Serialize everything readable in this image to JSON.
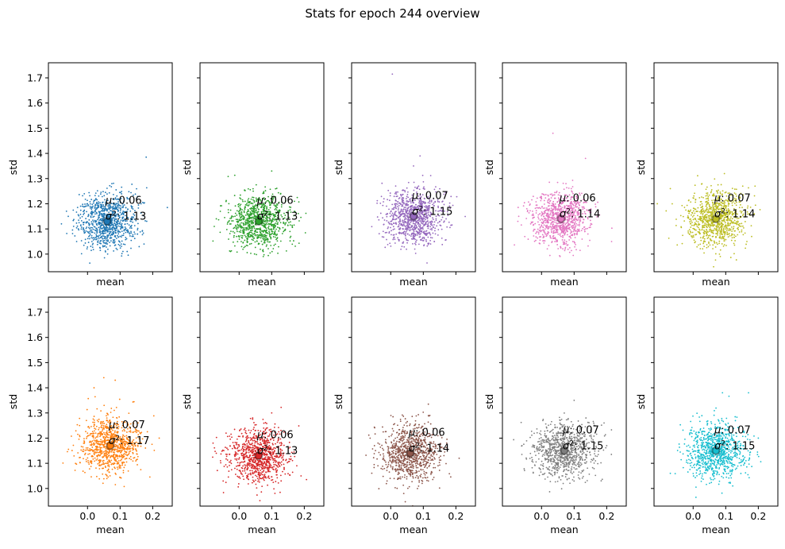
{
  "figure": {
    "title": "Stats for epoch 244 overview"
  },
  "chart_data": {
    "type": "scatter",
    "title": "Stats for epoch 244 overview",
    "layout": "2 rows x 5 columns, shared x and y axes",
    "xlabel": "mean",
    "ylabel": "std",
    "xlim": [
      -0.12,
      0.26
    ],
    "ylim": [
      0.93,
      1.76
    ],
    "xticks": [
      0.0,
      0.1,
      0.2
    ],
    "xtick_labels": [
      "0.0",
      "0.1",
      "0.2"
    ],
    "yticks": [
      1.0,
      1.1,
      1.2,
      1.3,
      1.4,
      1.5,
      1.6,
      1.7
    ],
    "ytick_labels": [
      "1.0",
      "1.1",
      "1.2",
      "1.3",
      "1.4",
      "1.5",
      "1.6",
      "1.7"
    ],
    "grid": false,
    "points_per_panel": 900,
    "panels": [
      {
        "color": "#1f77b4",
        "mean": 0.06,
        "std": 1.13,
        "spread_x": 0.045,
        "spread_y": 0.055,
        "mu_label": "0.06",
        "sigma_label": "1.13",
        "outliers": [
          [
            0.18,
            1.385
          ],
          [
            0.245,
            1.185
          ],
          [
            -0.08,
            1.12
          ],
          [
            0.15,
            1.22
          ]
        ]
      },
      {
        "color": "#2ca02c",
        "mean": 0.06,
        "std": 1.13,
        "spread_x": 0.045,
        "spread_y": 0.055,
        "mu_label": "0.06",
        "sigma_label": "1.13",
        "outliers": [
          [
            -0.07,
            1.14
          ],
          [
            0.17,
            1.17
          ],
          [
            0.1,
            1.33
          ]
        ]
      },
      {
        "color": "#9467bd",
        "mean": 0.07,
        "std": 1.15,
        "spread_x": 0.045,
        "spread_y": 0.055,
        "mu_label": "0.07",
        "sigma_label": "1.15",
        "outliers": [
          [
            0.005,
            1.715
          ],
          [
            0.09,
            1.39
          ],
          [
            0.07,
            1.35
          ],
          [
            0.17,
            1.14
          ]
        ]
      },
      {
        "color": "#e377c2",
        "mean": 0.06,
        "std": 1.14,
        "spread_x": 0.045,
        "spread_y": 0.055,
        "mu_label": "0.06",
        "sigma_label": "1.14",
        "outliers": [
          [
            0.035,
            1.48
          ],
          [
            0.135,
            1.38
          ],
          [
            0.215,
            1.05
          ],
          [
            -0.07,
            1.15
          ]
        ]
      },
      {
        "color": "#bcbd22",
        "mean": 0.07,
        "std": 1.14,
        "spread_x": 0.045,
        "spread_y": 0.055,
        "mu_label": "0.07",
        "sigma_label": "1.14",
        "outliers": [
          [
            -0.11,
            1.2
          ],
          [
            -0.07,
            1.26
          ],
          [
            0.19,
            1.27
          ]
        ]
      },
      {
        "color": "#ff7f0e",
        "mean": 0.07,
        "std": 1.17,
        "spread_x": 0.045,
        "spread_y": 0.055,
        "mu_label": "0.07",
        "sigma_label": "1.17",
        "outliers": [
          [
            0.05,
            1.44
          ],
          [
            0.085,
            1.43
          ],
          [
            0.02,
            1.4
          ],
          [
            0.22,
            1.2
          ]
        ]
      },
      {
        "color": "#d62728",
        "mean": 0.06,
        "std": 1.13,
        "spread_x": 0.045,
        "spread_y": 0.055,
        "mu_label": "0.06",
        "sigma_label": "1.13",
        "outliers": [
          [
            -0.08,
            1.18
          ],
          [
            0.19,
            1.05
          ],
          [
            -0.04,
            1.22
          ],
          [
            0.1,
            1.3
          ]
        ]
      },
      {
        "color": "#8c564b",
        "mean": 0.06,
        "std": 1.14,
        "spread_x": 0.045,
        "spread_y": 0.055,
        "mu_label": "0.06",
        "sigma_label": "1.14",
        "outliers": [
          [
            0.04,
            0.98
          ],
          [
            0.21,
            1.12
          ],
          [
            0.12,
            1.29
          ],
          [
            -0.05,
            1.17
          ]
        ]
      },
      {
        "color": "#7f7f7f",
        "mean": 0.07,
        "std": 1.15,
        "spread_x": 0.045,
        "spread_y": 0.055,
        "mu_label": "0.07",
        "sigma_label": "1.15",
        "outliers": [
          [
            0.1,
            1.35
          ],
          [
            -0.06,
            1.17
          ],
          [
            0.2,
            1.17
          ]
        ]
      },
      {
        "color": "#17becf",
        "mean": 0.07,
        "std": 1.15,
        "spread_x": 0.045,
        "spread_y": 0.055,
        "mu_label": "0.07",
        "sigma_label": "1.15",
        "outliers": [
          [
            0.17,
            1.38
          ],
          [
            0.09,
            1.38
          ],
          [
            -0.07,
            1.06
          ],
          [
            0.2,
            1.2
          ]
        ]
      }
    ]
  }
}
